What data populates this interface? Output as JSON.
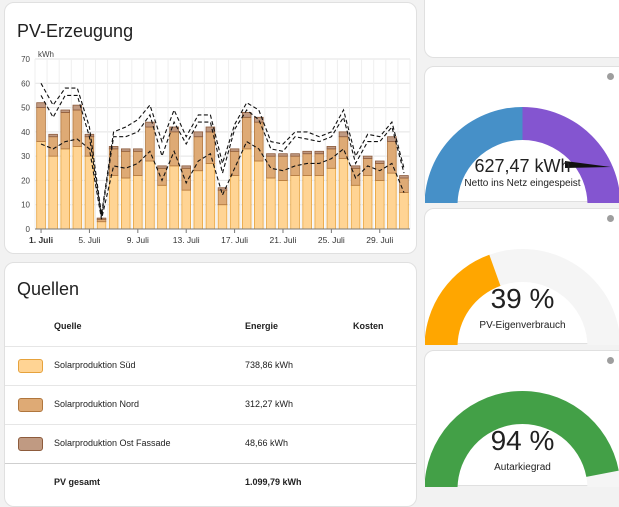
{
  "pv_card": {
    "title": "PV-Erzeugung",
    "chart_data": {
      "type": "bar",
      "stacked": true,
      "ylabel": "kWh",
      "ylim": [
        0,
        70
      ],
      "yticks": [
        0,
        10,
        20,
        30,
        40,
        50,
        60,
        70
      ],
      "grid": true,
      "x": [
        "1. Juli",
        "2. Juli",
        "3. Juli",
        "4. Juli",
        "5. Juli",
        "6. Juli",
        "7. Juli",
        "8. Juli",
        "9. Juli",
        "10. Juli",
        "11. Juli",
        "12. Juli",
        "13. Juli",
        "14. Juli",
        "15. Juli",
        "16. Juli",
        "17. Juli",
        "18. Juli",
        "19. Juli",
        "20. Juli",
        "21. Juli",
        "22. Juli",
        "23. Juli",
        "24. Juli",
        "25. Juli",
        "26. Juli",
        "27. Juli",
        "28. Juli",
        "29. Juli",
        "30. Juli",
        "31. Juli"
      ],
      "xtick_labels": [
        "1. Juli",
        "5. Juli",
        "9. Juli",
        "13. Juli",
        "17. Juli",
        "21. Juli",
        "25. Juli",
        "29. Juli"
      ],
      "series": [
        {
          "name": "Solarproduktion Süd",
          "color": "#ffd494",
          "values": [
            36,
            30,
            33,
            34,
            30,
            3,
            22,
            21,
            22,
            28,
            18,
            26,
            16,
            24,
            27,
            10,
            22,
            33,
            28,
            21,
            20,
            22,
            22,
            22,
            25,
            29,
            18,
            22,
            20,
            23,
            15
          ]
        },
        {
          "name": "Solarproduktion Nord",
          "color": "#deaa75",
          "values": [
            14,
            8,
            15,
            15,
            8,
            1,
            11,
            11,
            10,
            14,
            7,
            14,
            9,
            14,
            13,
            6,
            10,
            13,
            16,
            9,
            10,
            8,
            9,
            9,
            8,
            9,
            7,
            7,
            7,
            13,
            6
          ]
        },
        {
          "name": "Solarproduktion Ost Fassade",
          "color": "#c09a82",
          "values": [
            2,
            1,
            1,
            2,
            1,
            0.5,
            1,
            1,
            1,
            2,
            1,
            2,
            1,
            2,
            2,
            1,
            1,
            2,
            2,
            1,
            1,
            1,
            1,
            1,
            1,
            2,
            1,
            1,
            1,
            2,
            1
          ]
        }
      ],
      "lines": [
        {
          "style": "dashed",
          "color": "#111111",
          "values": [
            60,
            51,
            58,
            58,
            42,
            6,
            40,
            42,
            45,
            51,
            36,
            49,
            38,
            47,
            47,
            27,
            43,
            52,
            49,
            36,
            35,
            40,
            40,
            38,
            40,
            49,
            30,
            39,
            38,
            44,
            25
          ]
        },
        {
          "style": "dashed",
          "color": "#111111",
          "values": [
            55,
            46,
            55,
            55,
            38,
            5,
            38,
            38,
            40,
            47,
            30,
            44,
            35,
            44,
            44,
            23,
            41,
            49,
            45,
            33,
            32,
            38,
            37,
            36,
            38,
            46,
            27,
            36,
            36,
            42,
            23
          ]
        },
        {
          "style": "dashed",
          "color": "#111111",
          "values": [
            35,
            33,
            36,
            37,
            33,
            4,
            26,
            25,
            27,
            32,
            20,
            32,
            19,
            28,
            31,
            14,
            25,
            36,
            33,
            25,
            24,
            26,
            27,
            27,
            29,
            33,
            21,
            26,
            24,
            27,
            15
          ]
        }
      ]
    }
  },
  "sources": {
    "title": "Quellen",
    "headers": {
      "source": "Quelle",
      "energy": "Energie",
      "cost": "Kosten"
    },
    "rows": [
      {
        "label": "Solarproduktion Süd",
        "value": "738,86 kWh",
        "color": "#ffd494",
        "border": "#e6a23c"
      },
      {
        "label": "Solarproduktion Nord",
        "value": "312,27 kWh",
        "color": "#deaa75",
        "border": "#b0763d"
      },
      {
        "label": "Solarproduktion Ost Fassade",
        "value": "48,66 kWh",
        "color": "#c09a82",
        "border": "#8d5b3c"
      }
    ],
    "total": {
      "label": "PV gesamt",
      "value": "1.099,79 kWh"
    }
  },
  "gauges": [
    {
      "value": "627,47 kWh",
      "label": "Netto ins Netz eingespeist",
      "type": "net",
      "colors": {
        "left": "#4690c8",
        "right": "#8455d0"
      }
    },
    {
      "value": "39 %",
      "label": "PV-Eigenverbrauch",
      "type": "percent",
      "fraction": 0.39,
      "colors": {
        "fill": "#ffa600",
        "track": "#f5f5f5"
      }
    },
    {
      "value": "94 %",
      "label": "Autarkiegrad",
      "type": "percent",
      "fraction": 0.94,
      "colors": {
        "fill": "#43a047",
        "track": "#f5f5f5"
      }
    }
  ]
}
